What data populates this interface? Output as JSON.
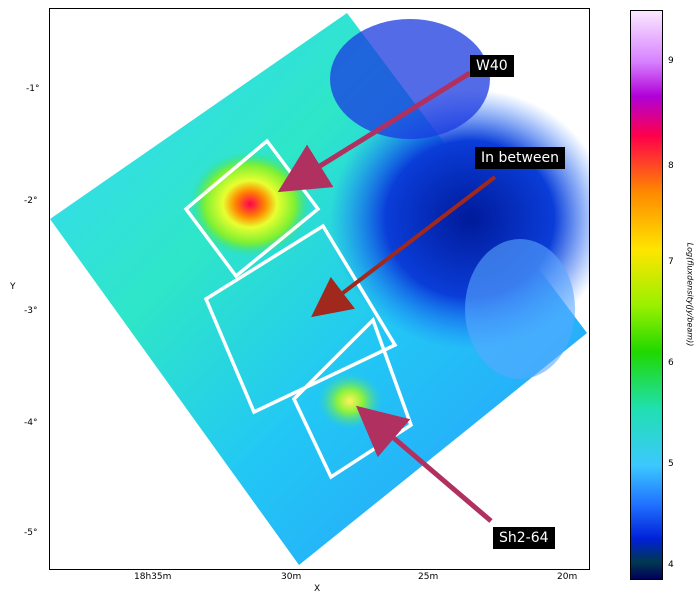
{
  "image": {
    "x_label": "X",
    "y_label": "Y",
    "x_ticks": [
      "18h35m",
      "30m",
      "25m",
      "20m"
    ],
    "y_ticks": [
      "-1°",
      "-2°",
      "-3°",
      "-4°",
      "-5°"
    ],
    "labels": {
      "w40": "W40",
      "in_between": "In between",
      "sh2_64": "Sh2-64"
    },
    "colorbar": {
      "title": "Log(fluxdensity(Jy/beam))",
      "ticks": [
        "9",
        "8",
        "7",
        "6",
        "5",
        "4"
      ]
    }
  },
  "colors": {
    "box": "#ffffff",
    "arrow": "#b03060",
    "dark_arrow": "#a0281c"
  }
}
